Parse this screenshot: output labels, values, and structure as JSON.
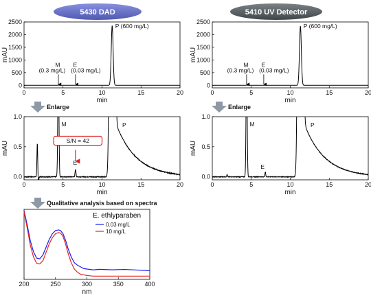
{
  "labels": {
    "dad_title": "5430 DAD",
    "uv_title": "5410 UV Detector",
    "enlarge": "Enlarge",
    "qualitative": "Qualitative analysis based on spectra"
  },
  "colors": {
    "dad_pill": "#6a73c8",
    "uv_pill": "#5b6366",
    "arrow": "#8f99a6",
    "trace": "#000000",
    "spectrum_low": "#1a1aee",
    "spectrum_high": "#e82222",
    "sn_box": "#e02020"
  },
  "chart_data": [
    {
      "id": "dad_full",
      "type": "line",
      "xlabel": "min",
      "ylabel": "mAU",
      "xlim": [
        0,
        20
      ],
      "ylim": [
        -100,
        2500
      ],
      "xticks": [
        "0",
        "5",
        "10",
        "15",
        "20"
      ],
      "yticks": [
        "0",
        "500",
        "1000",
        "1500",
        "2000",
        "2500"
      ],
      "peaks": [
        {
          "name": "P",
          "label": "P (600 mg/L)",
          "t": 11.3,
          "h": 2350,
          "w": 0.12
        },
        {
          "name": "M",
          "label": "M\n(0.3 mg/L)",
          "t": 4.4,
          "h": 12,
          "w": 0.05
        },
        {
          "name": "E",
          "label": "E\n(0.03 mg/L)",
          "t": 6.6,
          "h": 3,
          "w": 0.05
        }
      ],
      "annotations": [
        {
          "text": "P (600 mg/L)",
          "x": 11.7,
          "y": 2250
        },
        {
          "text": "M",
          "x": 4.0,
          "y": 730
        },
        {
          "text": "(0.3 mg/L)",
          "x": 1.9,
          "y": 510
        },
        {
          "text": "E",
          "x": 6.3,
          "y": 730
        },
        {
          "text": "(0.03 mg/L)",
          "x": 6.0,
          "y": 510
        }
      ],
      "arrows": [
        {
          "x": 4.4,
          "from": 430,
          "to": 40
        },
        {
          "x": 6.6,
          "from": 430,
          "to": 40
        }
      ]
    },
    {
      "id": "uv_full",
      "type": "line",
      "xlabel": "min",
      "ylabel": "mAU",
      "xlim": [
        0,
        20
      ],
      "ylim": [
        -100,
        2500
      ],
      "xticks": [
        "0",
        "5",
        "10",
        "15",
        "20"
      ],
      "yticks": [
        "0",
        "500",
        "1000",
        "1500",
        "2000",
        "2500"
      ],
      "peaks": [
        {
          "name": "P",
          "label": "P (600 mg/L)",
          "t": 11.3,
          "h": 2330,
          "w": 0.12
        },
        {
          "name": "M",
          "label": "M\n(0.3 mg/L)",
          "t": 4.4,
          "h": 12,
          "w": 0.05
        },
        {
          "name": "E",
          "label": "E\n(0.03 mg/L)",
          "t": 6.6,
          "h": 3,
          "w": 0.05
        }
      ],
      "annotations": [
        {
          "text": "P (600 mg/L)",
          "x": 11.7,
          "y": 2250
        },
        {
          "text": "M",
          "x": 4.0,
          "y": 730
        },
        {
          "text": "(0.3 mg/L)",
          "x": 1.9,
          "y": 510
        },
        {
          "text": "E",
          "x": 6.3,
          "y": 730
        },
        {
          "text": "(0.03 mg/L)",
          "x": 6.0,
          "y": 510
        }
      ],
      "arrows": [
        {
          "x": 4.4,
          "from": 430,
          "to": 40
        },
        {
          "x": 6.6,
          "from": 430,
          "to": 40
        }
      ]
    },
    {
      "id": "dad_zoom",
      "type": "line",
      "xlabel": "min",
      "ylabel": "mAU",
      "xlim": [
        0,
        20
      ],
      "ylim": [
        -0.05,
        1.0
      ],
      "xticks": [
        "0",
        "5",
        "10",
        "15",
        "20"
      ],
      "yticks": [
        "0.0",
        "0.5",
        "1.0"
      ],
      "peaks": [
        {
          "name": "void",
          "t": 1.7,
          "h": 0.55,
          "w": 0.05
        },
        {
          "name": "void2",
          "t": 1.85,
          "h": -0.12,
          "w": 0.04
        },
        {
          "name": "M",
          "t": 4.4,
          "h": 2.0,
          "w": 0.07
        },
        {
          "name": "E",
          "t": 6.6,
          "h": 0.12,
          "w": 0.06
        },
        {
          "name": "P",
          "t": 11.3,
          "h": 40,
          "w": 0.18
        }
      ],
      "tail": {
        "t0": 11.6,
        "amp": 0.95,
        "tau": 2.6
      },
      "noise": 0.006,
      "annotations": [
        {
          "text": "M",
          "x": 4.8,
          "y": 0.84
        },
        {
          "text": "E",
          "x": 6.3,
          "y": 0.2
        },
        {
          "text": "P",
          "x": 12.6,
          "y": 0.83
        }
      ],
      "sn_box": {
        "text": "S/N = 42",
        "x": 3.8,
        "y": 0.6,
        "w": 6.2,
        "h": 0.15
      },
      "sn_arrow": {
        "x": 6.6,
        "from": 0.45,
        "to": 0.26
      }
    },
    {
      "id": "uv_zoom",
      "type": "line",
      "xlabel": "min",
      "ylabel": "mAU",
      "xlim": [
        0,
        20
      ],
      "ylim": [
        -0.05,
        1.0
      ],
      "xticks": [
        "0",
        "5",
        "10",
        "15",
        "20"
      ],
      "yticks": [
        "0.0",
        "0.5",
        "1.0"
      ],
      "peaks": [
        {
          "name": "void",
          "t": 1.9,
          "h": 0.04,
          "w": 0.04
        },
        {
          "name": "M",
          "t": 4.4,
          "h": 2.0,
          "w": 0.07
        },
        {
          "name": "E",
          "t": 6.8,
          "h": 0.08,
          "w": 0.05
        },
        {
          "name": "P",
          "t": 11.3,
          "h": 40,
          "w": 0.18
        }
      ],
      "tail": {
        "t0": 11.6,
        "amp": 0.95,
        "tau": 2.6
      },
      "noise": 0.005,
      "annotations": [
        {
          "text": "M",
          "x": 4.8,
          "y": 0.84
        },
        {
          "text": "E",
          "x": 6.2,
          "y": 0.13
        },
        {
          "text": "P",
          "x": 12.6,
          "y": 0.83
        }
      ]
    },
    {
      "id": "spectra",
      "type": "line",
      "title": "E. ethlyparaben",
      "xlabel": "nm",
      "xlim": [
        200,
        400
      ],
      "xticks": [
        "200",
        "250",
        "300",
        "350",
        "400"
      ],
      "legend": "top-right",
      "series": [
        {
          "name": "0.03 mg/L",
          "color": "#1a1aee",
          "x": [
            200,
            205,
            210,
            215,
            220,
            225,
            230,
            235,
            240,
            245,
            250,
            255,
            258,
            262,
            266,
            270,
            275,
            280,
            285,
            290,
            295,
            300,
            310,
            320,
            340,
            360,
            380,
            400
          ],
          "y": [
            1.02,
            0.8,
            0.55,
            0.38,
            0.28,
            0.27,
            0.33,
            0.45,
            0.57,
            0.66,
            0.71,
            0.72,
            0.71,
            0.66,
            0.56,
            0.43,
            0.3,
            0.21,
            0.17,
            0.14,
            0.12,
            0.11,
            0.1,
            0.1,
            0.09,
            0.1,
            0.09,
            0.09
          ]
        },
        {
          "name": "10 mg/L",
          "color": "#e82222",
          "x": [
            200,
            205,
            210,
            215,
            220,
            225,
            230,
            235,
            240,
            245,
            250,
            255,
            258,
            262,
            266,
            270,
            275,
            280,
            285,
            290,
            295,
            300,
            310,
            320,
            340,
            360,
            380,
            400
          ],
          "y": [
            1.0,
            0.75,
            0.48,
            0.3,
            0.2,
            0.19,
            0.24,
            0.37,
            0.5,
            0.6,
            0.66,
            0.68,
            0.67,
            0.62,
            0.5,
            0.36,
            0.21,
            0.11,
            0.06,
            0.03,
            0.02,
            0.01,
            0.0,
            0.0,
            0.0,
            0.0,
            0.0,
            0.0
          ]
        }
      ]
    }
  ]
}
